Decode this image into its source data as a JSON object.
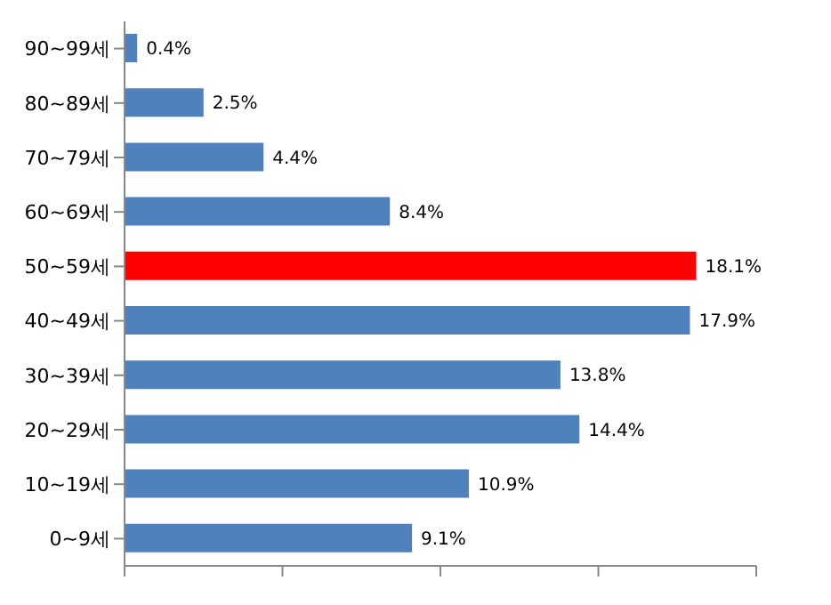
{
  "chart_data": {
    "type": "bar",
    "orientation": "horizontal",
    "categories": [
      "90~99세",
      "80~89세",
      "70~79세",
      "60~69세",
      "50~59세",
      "40~49세",
      "30~39세",
      "20~29세",
      "10~19세",
      "0~9세"
    ],
    "values": [
      0.4,
      2.5,
      4.4,
      8.4,
      18.1,
      17.9,
      13.8,
      14.4,
      10.9,
      9.1
    ],
    "colors": [
      "#4f81bd",
      "#4f81bd",
      "#4f81bd",
      "#4f81bd",
      "#ff0000",
      "#4f81bd",
      "#4f81bd",
      "#4f81bd",
      "#4f81bd",
      "#4f81bd"
    ],
    "value_labels": [
      "0.4%",
      "2.5%",
      "4.4%",
      "8.4%",
      "18.1%",
      "17.9%",
      "13.8%",
      "14.4%",
      "10.9%",
      "9.1%"
    ],
    "xlim": [
      0,
      20
    ],
    "xticks": [
      {
        "value": 0,
        "label": null
      },
      {
        "value": 5,
        "label": null
      },
      {
        "value": 10,
        "label": null
      },
      {
        "value": 15,
        "label": null
      },
      {
        "value": 20,
        "label": null
      }
    ],
    "grid": false,
    "legend": false
  }
}
